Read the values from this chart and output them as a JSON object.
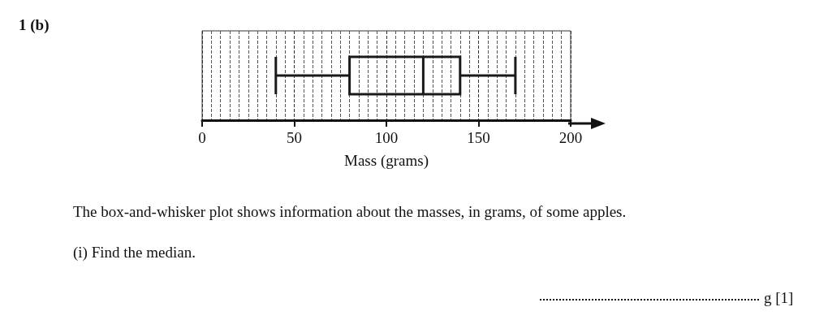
{
  "chart_data": {
    "type": "box",
    "orientation": "horizontal",
    "title": "1 (b)",
    "xlabel": "Mass (grams)",
    "categories": [
      null
    ],
    "boxes": [
      {
        "low": 40,
        "q1": 80,
        "median": 120,
        "q3": 140,
        "high": 170
      }
    ],
    "color": "#1a1a1a",
    "xlim": [
      0,
      200
    ],
    "xticks": [
      0,
      50,
      100,
      150,
      200
    ],
    "grid": "x",
    "tick_labels": "x",
    "annotations": [
      "The box-and-whisker plot shows information about the masses, in grams, of some apples.",
      "(i)   Find the median.",
      "g  [1]"
    ]
  }
}
